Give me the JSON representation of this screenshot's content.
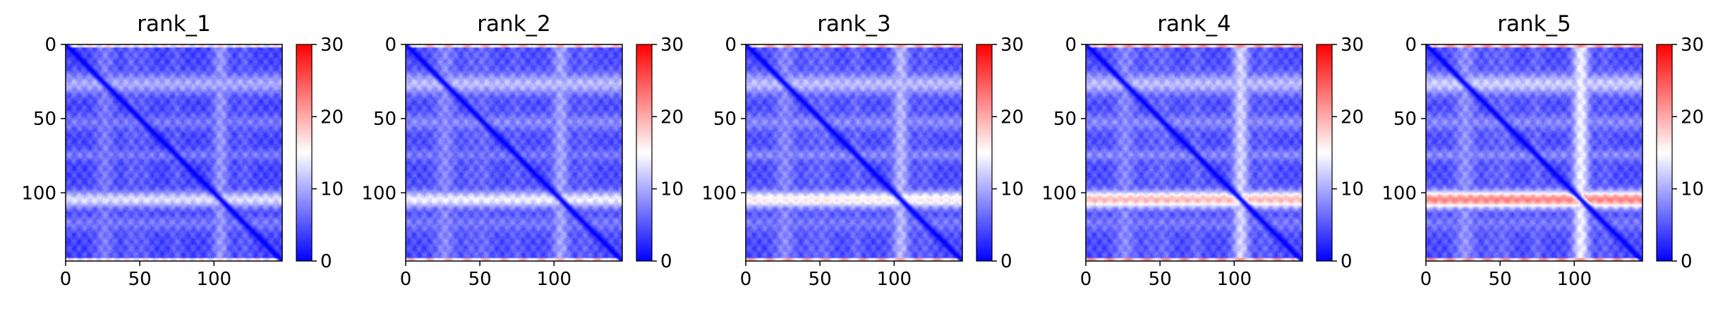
{
  "figure": {
    "colormap": "bwr",
    "colors": {
      "low": "#0000ff",
      "mid": "#ffffff",
      "high": "#ff0000"
    }
  },
  "chart_data": [
    {
      "type": "heatmap",
      "title": "rank_1",
      "matrix_size": 146,
      "x_ticks": [
        0,
        50,
        100
      ],
      "y_ticks": [
        0,
        50,
        100
      ],
      "xlim": [
        0,
        146
      ],
      "ylim": [
        146,
        0
      ],
      "colorbar": {
        "min": 0,
        "max": 30,
        "ticks": [
          0,
          10,
          20,
          30
        ]
      },
      "diagonal_value": 0,
      "background_value": 4,
      "bands": [
        {
          "axis": "row",
          "center": 26,
          "width": 5,
          "value": 10
        },
        {
          "axis": "row",
          "center": 52,
          "width": 4,
          "value": 7
        },
        {
          "axis": "row",
          "center": 74,
          "width": 3,
          "value": 7
        },
        {
          "axis": "row",
          "center": 104,
          "width": 4,
          "value": 13
        },
        {
          "axis": "row",
          "center": 120,
          "width": 4,
          "value": 7
        },
        {
          "axis": "col",
          "center": 104,
          "width": 5,
          "value": 7
        },
        {
          "axis": "col",
          "center": 44,
          "width": 4,
          "value": 6
        }
      ],
      "edge_value": 18
    },
    {
      "type": "heatmap",
      "title": "rank_2",
      "matrix_size": 146,
      "x_ticks": [
        0,
        50,
        100
      ],
      "y_ticks": [
        0,
        50,
        100
      ],
      "xlim": [
        0,
        146
      ],
      "ylim": [
        146,
        0
      ],
      "colorbar": {
        "min": 0,
        "max": 30,
        "ticks": [
          0,
          10,
          20,
          30
        ]
      },
      "diagonal_value": 0,
      "background_value": 4.5,
      "bands": [
        {
          "axis": "row",
          "center": 26,
          "width": 5,
          "value": 11
        },
        {
          "axis": "row",
          "center": 52,
          "width": 4,
          "value": 8
        },
        {
          "axis": "row",
          "center": 74,
          "width": 3,
          "value": 7
        },
        {
          "axis": "row",
          "center": 104,
          "width": 4,
          "value": 14
        },
        {
          "axis": "row",
          "center": 120,
          "width": 4,
          "value": 7
        },
        {
          "axis": "col",
          "center": 104,
          "width": 5,
          "value": 7
        },
        {
          "axis": "col",
          "center": 44,
          "width": 4,
          "value": 6
        }
      ],
      "edge_value": 20
    },
    {
      "type": "heatmap",
      "title": "rank_3",
      "matrix_size": 146,
      "x_ticks": [
        0,
        50,
        100
      ],
      "y_ticks": [
        0,
        50,
        100
      ],
      "xlim": [
        0,
        146
      ],
      "ylim": [
        146,
        0
      ],
      "colorbar": {
        "min": 0,
        "max": 30,
        "ticks": [
          0,
          10,
          20,
          30
        ]
      },
      "diagonal_value": 0,
      "background_value": 4.5,
      "bands": [
        {
          "axis": "row",
          "center": 26,
          "width": 5,
          "value": 11
        },
        {
          "axis": "row",
          "center": 52,
          "width": 4,
          "value": 8
        },
        {
          "axis": "row",
          "center": 74,
          "width": 3,
          "value": 8
        },
        {
          "axis": "row",
          "center": 104,
          "width": 4,
          "value": 16
        },
        {
          "axis": "row",
          "center": 120,
          "width": 4,
          "value": 7
        },
        {
          "axis": "col",
          "center": 104,
          "width": 5,
          "value": 8
        },
        {
          "axis": "col",
          "center": 44,
          "width": 4,
          "value": 6
        }
      ],
      "edge_value": 21
    },
    {
      "type": "heatmap",
      "title": "rank_4",
      "matrix_size": 146,
      "x_ticks": [
        0,
        50,
        100
      ],
      "y_ticks": [
        0,
        50,
        100
      ],
      "xlim": [
        0,
        146
      ],
      "ylim": [
        146,
        0
      ],
      "colorbar": {
        "min": 0,
        "max": 30,
        "ticks": [
          0,
          10,
          20,
          30
        ]
      },
      "diagonal_value": 0,
      "background_value": 4.5,
      "bands": [
        {
          "axis": "row",
          "center": 26,
          "width": 5,
          "value": 11
        },
        {
          "axis": "row",
          "center": 52,
          "width": 4,
          "value": 8
        },
        {
          "axis": "row",
          "center": 74,
          "width": 3,
          "value": 8
        },
        {
          "axis": "row",
          "center": 104,
          "width": 4,
          "value": 19
        },
        {
          "axis": "row",
          "center": 120,
          "width": 4,
          "value": 7
        },
        {
          "axis": "col",
          "center": 104,
          "width": 5,
          "value": 8
        },
        {
          "axis": "col",
          "center": 44,
          "width": 4,
          "value": 6
        }
      ],
      "edge_value": 22
    },
    {
      "type": "heatmap",
      "title": "rank_5",
      "matrix_size": 146,
      "x_ticks": [
        0,
        50,
        100
      ],
      "y_ticks": [
        0,
        50,
        100
      ],
      "xlim": [
        0,
        146
      ],
      "ylim": [
        146,
        0
      ],
      "colorbar": {
        "min": 0,
        "max": 30,
        "ticks": [
          0,
          10,
          20,
          30
        ]
      },
      "diagonal_value": 0,
      "background_value": 4.5,
      "bands": [
        {
          "axis": "row",
          "center": 26,
          "width": 5,
          "value": 12
        },
        {
          "axis": "row",
          "center": 52,
          "width": 4,
          "value": 8
        },
        {
          "axis": "row",
          "center": 74,
          "width": 3,
          "value": 8
        },
        {
          "axis": "row",
          "center": 104,
          "width": 4,
          "value": 22
        },
        {
          "axis": "row",
          "center": 120,
          "width": 4,
          "value": 7
        },
        {
          "axis": "col",
          "center": 104,
          "width": 5,
          "value": 8
        },
        {
          "axis": "col",
          "center": 44,
          "width": 4,
          "value": 6
        }
      ],
      "edge_value": 22
    }
  ]
}
